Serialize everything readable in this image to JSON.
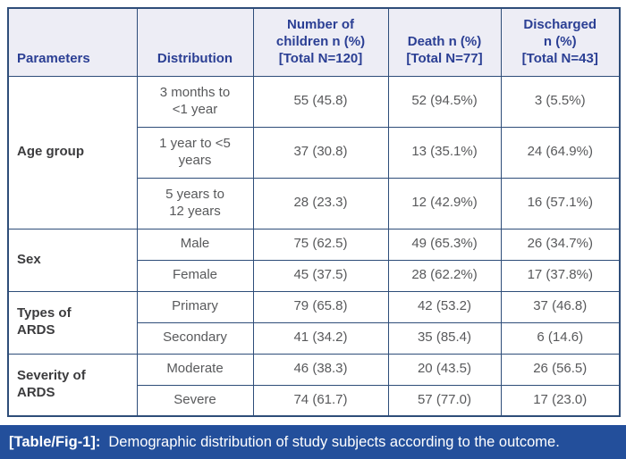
{
  "colors": {
    "border": "#2e4d79",
    "header_bg": "#ededf5",
    "header_text": "#2b3f94",
    "body_text": "#58595b",
    "parameter_text": "#3c3c3e",
    "caption_bg": "#234f9b",
    "caption_text": "#ffffff"
  },
  "table": {
    "columns": [
      "Parameters",
      "Distribution",
      "Number of\nchildren n (%)\n[Total N=120]",
      "Death n (%)\n[Total N=77]",
      "Discharged\nn (%)\n[Total N=43]"
    ],
    "groups": [
      {
        "parameter": "Age group",
        "rows": [
          {
            "distribution": "3 months to\n<1 year",
            "children": "55 (45.8)",
            "death": "52 (94.5%)",
            "discharged": "3 (5.5%)"
          },
          {
            "distribution": "1 year to <5\nyears",
            "children": "37 (30.8)",
            "death": "13 (35.1%)",
            "discharged": "24 (64.9%)"
          },
          {
            "distribution": "5 years to\n12 years",
            "children": "28 (23.3)",
            "death": "12 (42.9%)",
            "discharged": "16 (57.1%)"
          }
        ]
      },
      {
        "parameter": "Sex",
        "rows": [
          {
            "distribution": "Male",
            "children": "75 (62.5)",
            "death": "49 (65.3%)",
            "discharged": "26 (34.7%)"
          },
          {
            "distribution": "Female",
            "children": "45 (37.5)",
            "death": "28 (62.2%)",
            "discharged": "17 (37.8%)"
          }
        ]
      },
      {
        "parameter": "Types of\nARDS",
        "rows": [
          {
            "distribution": "Primary",
            "children": "79 (65.8)",
            "death": "42 (53.2)",
            "discharged": "37 (46.8)"
          },
          {
            "distribution": "Secondary",
            "children": "41 (34.2)",
            "death": "35 (85.4)",
            "discharged": "6 (14.6)"
          }
        ]
      },
      {
        "parameter": "Severity of\nARDS",
        "rows": [
          {
            "distribution": "Moderate",
            "children": "46 (38.3)",
            "death": "20 (43.5)",
            "discharged": "26 (56.5)"
          },
          {
            "distribution": "Severe",
            "children": "74 (61.7)",
            "death": "57 (77.0)",
            "discharged": "17 (23.0)"
          }
        ]
      }
    ]
  },
  "caption": {
    "label": "[Table/Fig-1]:",
    "text": "Demographic distribution of study subjects according to the outcome."
  }
}
